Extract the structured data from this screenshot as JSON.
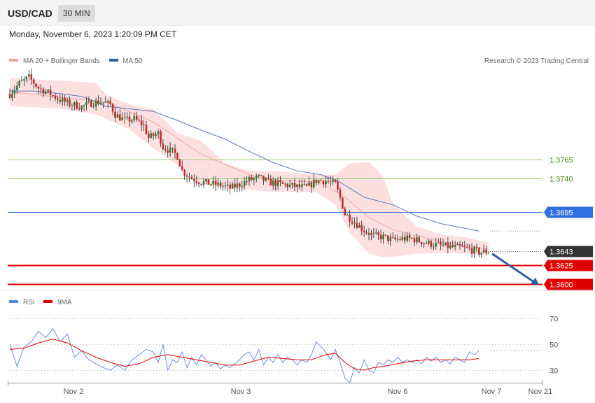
{
  "header": {
    "symbol": "USD/CAD",
    "timeframe": "30 MIN"
  },
  "timestamp": "Monday, November 6, 2023 1:20:09 PM CET",
  "legend": {
    "ma": "MA 20 + Bollinger Bands",
    "ma50": "MA 50",
    "rsi": "RSI",
    "rsi_ma": "9MA"
  },
  "credit": "Research © 2023 Trading Central",
  "colors": {
    "bands": "#fcdada",
    "ma20": "#f4a3a3",
    "ma50": "#5a78b0",
    "support": "#e00000",
    "resistance_green": "#9ccc78",
    "resistance_blue": "#2f6fe0",
    "last": "#333333",
    "rsi": "#6d8fdc",
    "rsi_ma": "#e00000",
    "arrow": "#2f5f9f"
  },
  "chart_data": [
    {
      "type": "candlestick",
      "title": "USD/CAD",
      "x_ticks": [
        "Nov 2",
        "Nov 3",
        "Nov 6",
        "Nov 7",
        "Nov 21"
      ],
      "ylim": [
        1.3596,
        1.3884
      ],
      "price_path": [
        [
          0,
          1.3852
        ],
        [
          4,
          1.3866
        ],
        [
          8,
          1.3874
        ],
        [
          12,
          1.386
        ],
        [
          16,
          1.3854
        ],
        [
          20,
          1.3846
        ],
        [
          24,
          1.384
        ],
        [
          30,
          1.3835
        ],
        [
          34,
          1.384
        ],
        [
          38,
          1.3842
        ],
        [
          42,
          1.3838
        ],
        [
          44,
          1.3825
        ],
        [
          48,
          1.3817
        ],
        [
          52,
          1.3819
        ],
        [
          56,
          1.381
        ],
        [
          58,
          1.3794
        ],
        [
          62,
          1.38
        ],
        [
          64,
          1.3782
        ],
        [
          68,
          1.3775
        ],
        [
          70,
          1.377
        ],
        [
          72,
          1.375
        ],
        [
          76,
          1.374
        ],
        [
          80,
          1.3735
        ],
        [
          84,
          1.3733
        ],
        [
          88,
          1.3731
        ],
        [
          92,
          1.3727
        ],
        [
          96,
          1.3732
        ],
        [
          100,
          1.3738
        ],
        [
          104,
          1.3741
        ],
        [
          108,
          1.3735
        ],
        [
          112,
          1.3733
        ],
        [
          116,
          1.3731
        ],
        [
          120,
          1.3729
        ],
        [
          124,
          1.3728
        ],
        [
          128,
          1.3737
        ],
        [
          132,
          1.3737
        ],
        [
          136,
          1.3732
        ],
        [
          138,
          1.3714
        ],
        [
          140,
          1.3693
        ],
        [
          144,
          1.3682
        ],
        [
          148,
          1.3671
        ],
        [
          152,
          1.3664
        ],
        [
          156,
          1.3662
        ],
        [
          160,
          1.3658
        ],
        [
          164,
          1.366
        ],
        [
          168,
          1.366
        ],
        [
          172,
          1.3656
        ],
        [
          176,
          1.3653
        ],
        [
          180,
          1.3651
        ],
        [
          184,
          1.3649
        ],
        [
          188,
          1.3648
        ],
        [
          192,
          1.3646
        ],
        [
          196,
          1.3642
        ],
        [
          200,
          1.3643
        ]
      ],
      "ma20_path": [
        [
          0,
          1.3855
        ],
        [
          20,
          1.3848
        ],
        [
          40,
          1.3842
        ],
        [
          60,
          1.3815
        ],
        [
          80,
          1.3772
        ],
        [
          100,
          1.3745
        ],
        [
          110,
          1.3738
        ],
        [
          130,
          1.3735
        ],
        [
          140,
          1.3715
        ],
        [
          150,
          1.3688
        ],
        [
          160,
          1.3672
        ],
        [
          180,
          1.3656
        ],
        [
          200,
          1.3646
        ]
      ],
      "bb_upper_path": [
        [
          0,
          1.3873
        ],
        [
          20,
          1.387
        ],
        [
          36,
          1.3867
        ],
        [
          40,
          1.3852
        ],
        [
          50,
          1.3838
        ],
        [
          60,
          1.3832
        ],
        [
          70,
          1.38
        ],
        [
          80,
          1.379
        ],
        [
          90,
          1.376
        ],
        [
          100,
          1.375
        ],
        [
          110,
          1.375
        ],
        [
          128,
          1.3745
        ],
        [
          136,
          1.3745
        ],
        [
          142,
          1.376
        ],
        [
          150,
          1.3762
        ],
        [
          156,
          1.3742
        ],
        [
          160,
          1.3706
        ],
        [
          170,
          1.3676
        ],
        [
          180,
          1.3666
        ],
        [
          190,
          1.3662
        ],
        [
          200,
          1.3655
        ]
      ],
      "bb_lower_path": [
        [
          0,
          1.3836
        ],
        [
          20,
          1.3833
        ],
        [
          36,
          1.3825
        ],
        [
          50,
          1.3805
        ],
        [
          60,
          1.378
        ],
        [
          70,
          1.3758
        ],
        [
          80,
          1.3732
        ],
        [
          90,
          1.3727
        ],
        [
          100,
          1.3725
        ],
        [
          110,
          1.3722
        ],
        [
          128,
          1.3722
        ],
        [
          136,
          1.3705
        ],
        [
          142,
          1.3668
        ],
        [
          150,
          1.364
        ],
        [
          156,
          1.3635
        ],
        [
          160,
          1.3636
        ],
        [
          170,
          1.364
        ],
        [
          180,
          1.3641
        ],
        [
          190,
          1.364
        ],
        [
          200,
          1.3638
        ]
      ],
      "ma50_path": [
        [
          0,
          1.3856
        ],
        [
          10,
          1.3856
        ],
        [
          20,
          1.3853
        ],
        [
          30,
          1.3849
        ],
        [
          40,
          1.3836
        ],
        [
          60,
          1.3829
        ],
        [
          70,
          1.3817
        ],
        [
          80,
          1.3804
        ],
        [
          90,
          1.3792
        ],
        [
          100,
          1.3776
        ],
        [
          110,
          1.3761
        ],
        [
          120,
          1.375
        ],
        [
          130,
          1.3745
        ],
        [
          138,
          1.3735
        ],
        [
          148,
          1.3715
        ],
        [
          160,
          1.3705
        ],
        [
          170,
          1.369
        ],
        [
          180,
          1.368
        ],
        [
          196,
          1.367
        ]
      ],
      "levels": [
        {
          "price": 1.3765,
          "label": "1.3765",
          "kind": "resistance-green"
        },
        {
          "price": 1.374,
          "label": "1.3740",
          "kind": "resistance-green"
        },
        {
          "price": 1.3695,
          "label": "1.3695",
          "kind": "resistance-blue"
        },
        {
          "price": 1.3643,
          "label": "1.3643",
          "kind": "last-price"
        },
        {
          "price": 1.3625,
          "label": "1.3625",
          "kind": "support"
        },
        {
          "price": 1.36,
          "label": "1.3600",
          "kind": "support"
        }
      ],
      "forecast_arrow": {
        "from": 1.364,
        "to": 1.3598
      }
    },
    {
      "type": "line",
      "title": "RSI",
      "ylim": [
        22,
        78
      ],
      "y_ticks": [
        70,
        50,
        30
      ],
      "series": [
        {
          "name": "RSI",
          "values": [
            [
              0,
              50
            ],
            [
              3,
              33
            ],
            [
              6,
              48
            ],
            [
              9,
              52
            ],
            [
              12,
              60
            ],
            [
              15,
              55
            ],
            [
              18,
              62
            ],
            [
              21,
              52
            ],
            [
              24,
              58
            ],
            [
              27,
              40
            ],
            [
              30,
              45
            ],
            [
              33,
              38
            ],
            [
              36,
              35
            ],
            [
              39,
              32
            ],
            [
              42,
              30
            ],
            [
              45,
              34
            ],
            [
              48,
              30
            ],
            [
              51,
              38
            ],
            [
              54,
              42
            ],
            [
              57,
              46
            ],
            [
              60,
              44
            ],
            [
              62,
              36
            ],
            [
              64,
              50
            ],
            [
              66,
              30
            ],
            [
              68,
              38
            ],
            [
              70,
              36
            ],
            [
              72,
              44
            ],
            [
              74,
              32
            ],
            [
              76,
              40
            ],
            [
              78,
              34
            ],
            [
              80,
              42
            ],
            [
              82,
              38
            ],
            [
              84,
              33
            ],
            [
              86,
              36
            ],
            [
              88,
              31
            ],
            [
              90,
              34
            ],
            [
              92,
              32
            ],
            [
              94,
              35
            ],
            [
              96,
              38
            ],
            [
              98,
              42
            ],
            [
              100,
              44
            ],
            [
              102,
              38
            ],
            [
              104,
              46
            ],
            [
              106,
              34
            ],
            [
              108,
              40
            ],
            [
              110,
              36
            ],
            [
              112,
              42
            ],
            [
              114,
              36
            ],
            [
              116,
              40
            ],
            [
              118,
              38
            ],
            [
              120,
              34
            ],
            [
              122,
              38
            ],
            [
              124,
              36
            ],
            [
              126,
              42
            ],
            [
              128,
              52
            ],
            [
              130,
              48
            ],
            [
              132,
              44
            ],
            [
              134,
              38
            ],
            [
              136,
              46
            ],
            [
              138,
              36
            ],
            [
              140,
              24
            ],
            [
              142,
              20
            ],
            [
              144,
              32
            ],
            [
              146,
              28
            ],
            [
              148,
              38
            ],
            [
              150,
              30
            ],
            [
              152,
              28
            ],
            [
              154,
              36
            ],
            [
              156,
              34
            ],
            [
              158,
              38
            ],
            [
              160,
              36
            ],
            [
              162,
              40
            ],
            [
              164,
              36
            ],
            [
              166,
              38
            ],
            [
              168,
              36
            ],
            [
              170,
              38
            ],
            [
              172,
              35
            ],
            [
              174,
              40
            ],
            [
              176,
              37
            ],
            [
              178,
              40
            ],
            [
              180,
              36
            ],
            [
              182,
              38
            ],
            [
              184,
              35
            ],
            [
              186,
              40
            ],
            [
              188,
              38
            ],
            [
              190,
              36
            ],
            [
              192,
              44
            ],
            [
              194,
              42
            ],
            [
              196,
              45
            ]
          ]
        },
        {
          "name": "9MA",
          "values": [
            [
              0,
              46
            ],
            [
              6,
              47
            ],
            [
              12,
              51
            ],
            [
              18,
              54
            ],
            [
              24,
              51
            ],
            [
              30,
              45
            ],
            [
              36,
              40
            ],
            [
              42,
              36
            ],
            [
              48,
              33
            ],
            [
              54,
              35
            ],
            [
              60,
              40
            ],
            [
              66,
              42
            ],
            [
              72,
              40
            ],
            [
              78,
              38
            ],
            [
              84,
              36
            ],
            [
              90,
              34
            ],
            [
              96,
              34
            ],
            [
              102,
              37
            ],
            [
              108,
              40
            ],
            [
              114,
              39
            ],
            [
              120,
              38
            ],
            [
              126,
              38
            ],
            [
              132,
              42
            ],
            [
              136,
              43
            ],
            [
              140,
              36
            ],
            [
              144,
              31
            ],
            [
              148,
              30
            ],
            [
              152,
              32
            ],
            [
              156,
              33
            ],
            [
              162,
              35
            ],
            [
              168,
              37
            ],
            [
              174,
              38
            ],
            [
              180,
              38
            ],
            [
              186,
              38
            ],
            [
              192,
              38
            ],
            [
              196,
              39
            ]
          ]
        }
      ]
    }
  ]
}
